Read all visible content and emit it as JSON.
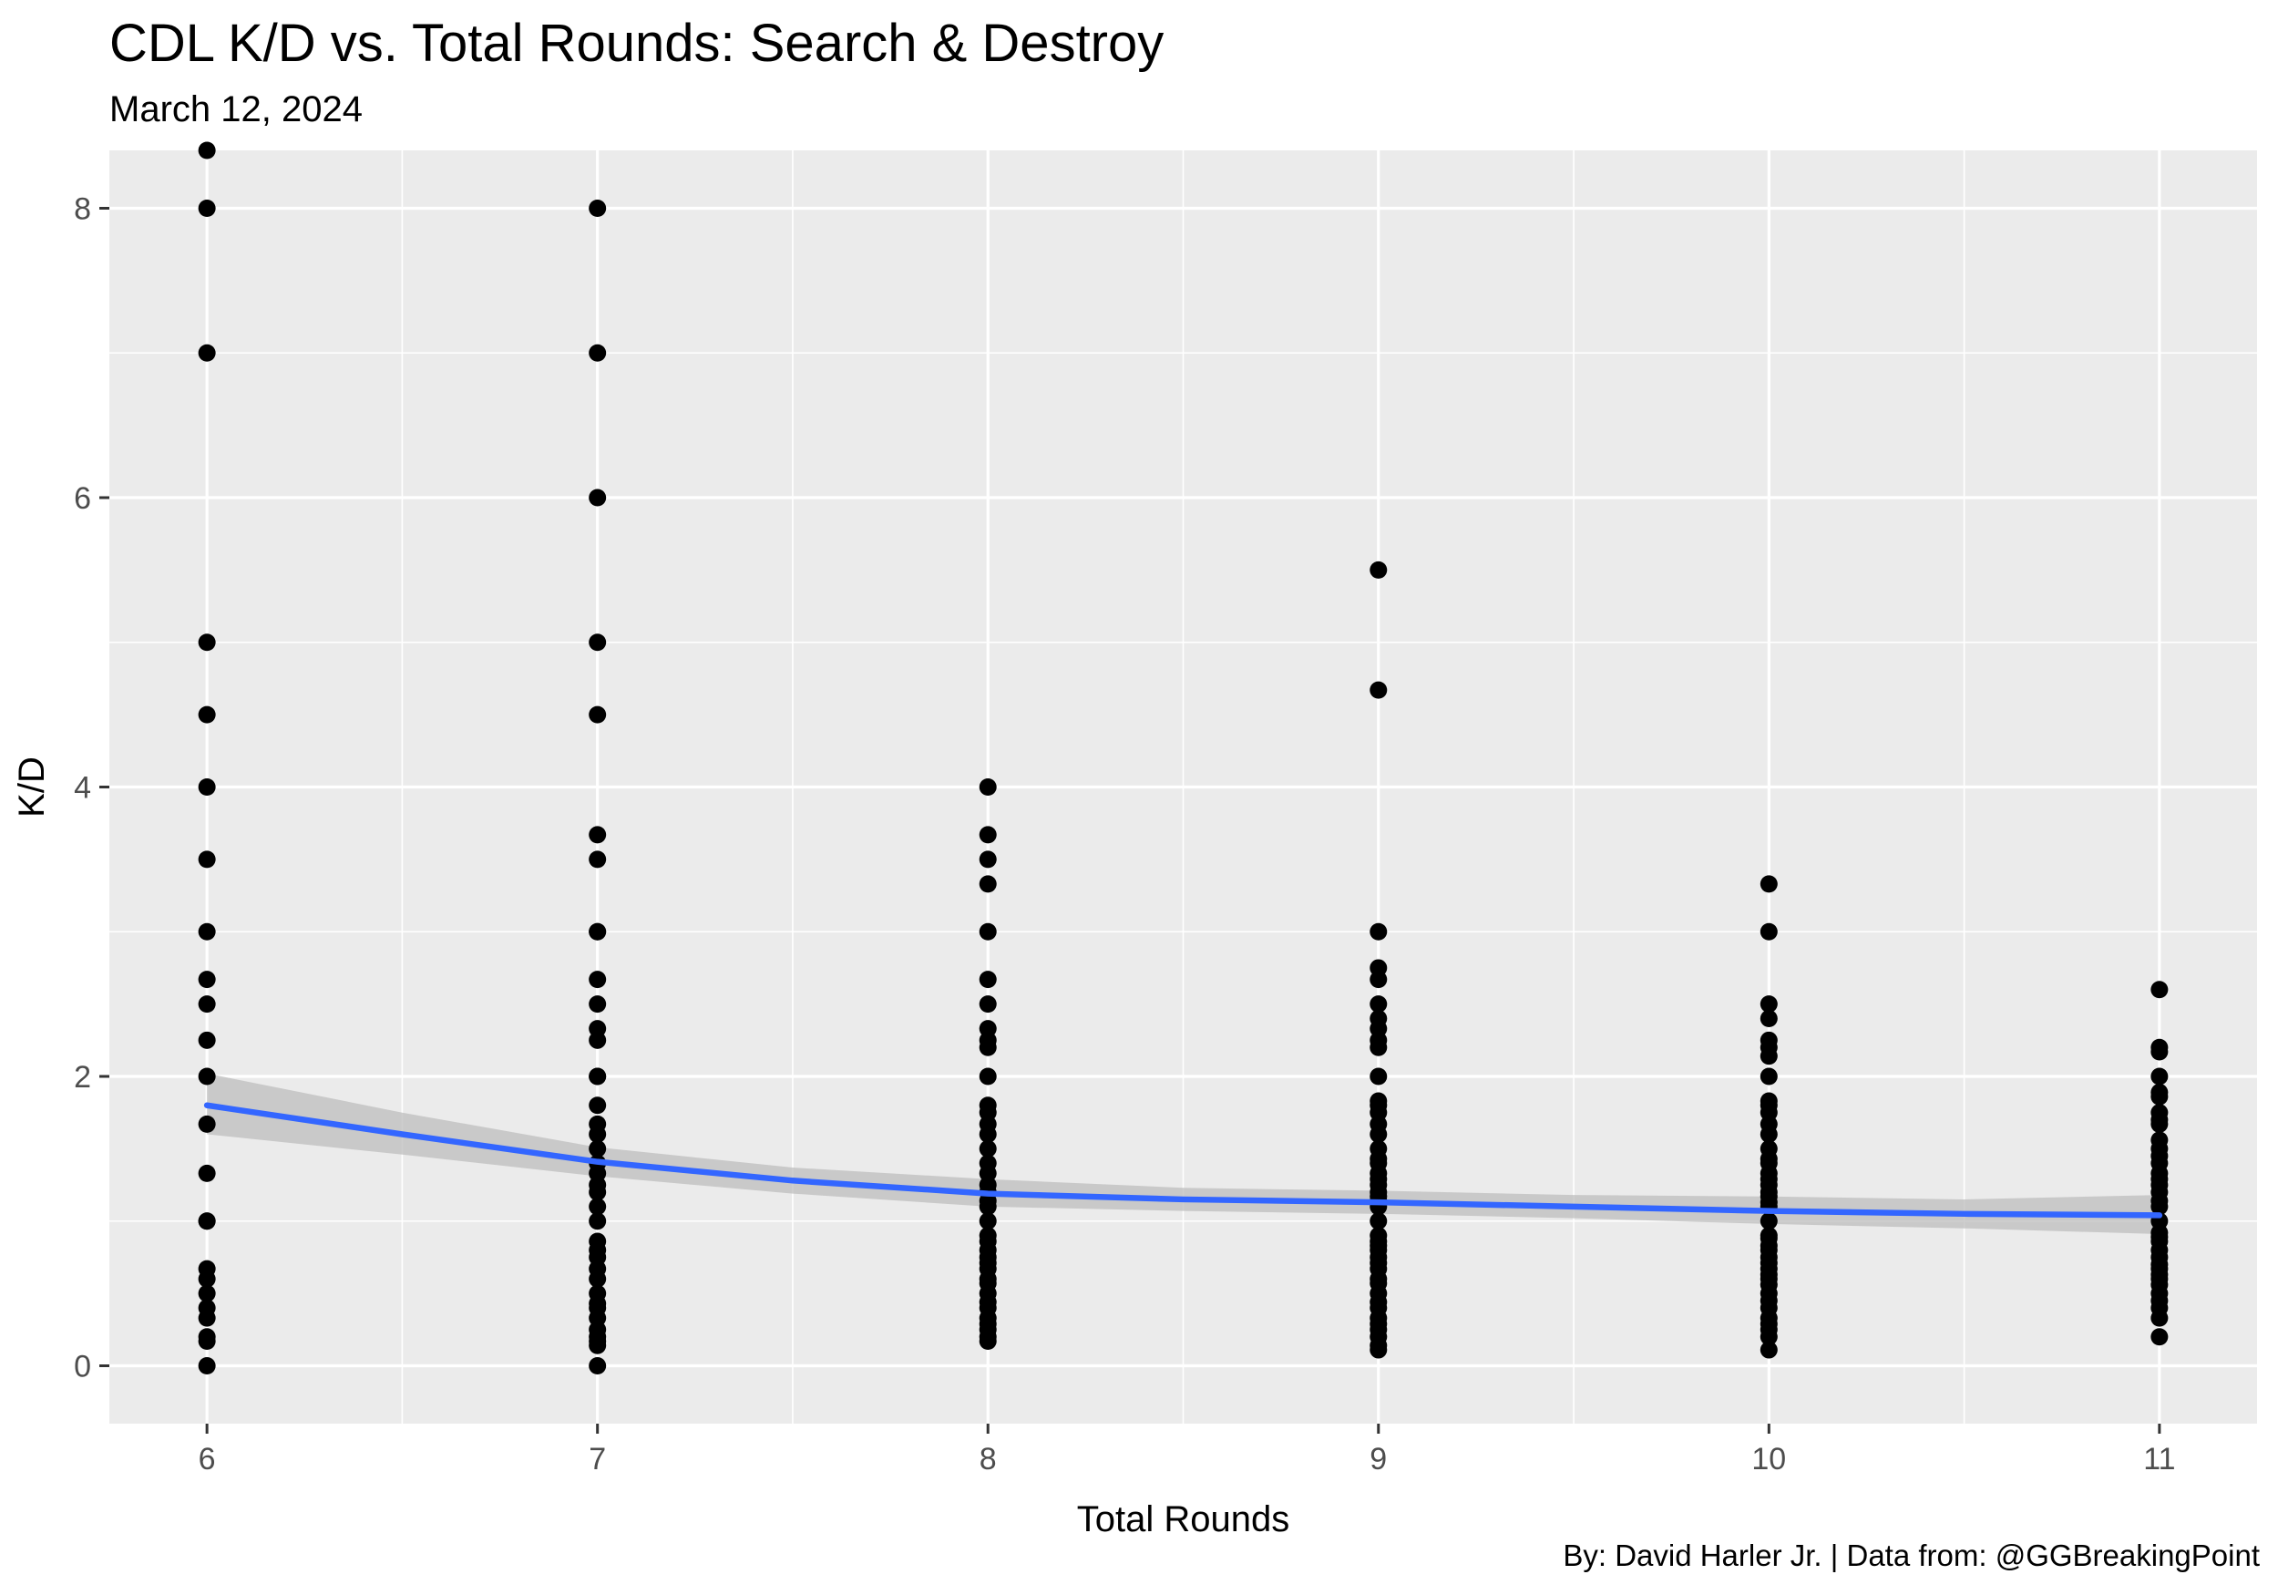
{
  "chart_data": {
    "type": "scatter",
    "title": "CDL K/D vs. Total Rounds: Search & Destroy",
    "subtitle": "March 12, 2024",
    "caption": "By: David Harler Jr. | Data from: @GGBreakingPoint",
    "xlabel": "Total Rounds",
    "ylabel": "K/D",
    "xlim": [
      5.75,
      11.25
    ],
    "ylim": [
      -0.4,
      8.4
    ],
    "x_ticks": [
      6,
      7,
      8,
      9,
      10,
      11
    ],
    "y_ticks": [
      0,
      2,
      4,
      6,
      8
    ],
    "grid": true,
    "background": "#EBEBEB",
    "grid_color": "#FFFFFF",
    "point_color": "#000000",
    "smooth_color": "#3366FF",
    "band_color": "#BEBEBE",
    "points": [
      {
        "x": 6,
        "y": [
          8.4,
          8,
          7,
          5,
          4.5,
          4,
          3.5,
          3,
          2.67,
          2.5,
          2.25,
          2,
          1.67,
          1.33,
          1,
          1,
          0.67,
          0.6,
          0.5,
          0.4,
          0.33,
          0.2,
          0.17,
          0
        ]
      },
      {
        "x": 7,
        "y": [
          8,
          7,
          6,
          5,
          4.5,
          3.67,
          3.5,
          3,
          3,
          2.67,
          2.5,
          2.33,
          2.25,
          2,
          2,
          1.8,
          1.67,
          1.6,
          1.5,
          1.4,
          1.33,
          1.25,
          1.2,
          1.1,
          1,
          0.86,
          0.8,
          0.75,
          0.67,
          0.6,
          0.5,
          0.43,
          0.4,
          0.33,
          0.25,
          0.2,
          0.17,
          0.14,
          0
        ]
      },
      {
        "x": 8,
        "y": [
          4,
          3.67,
          3.5,
          3.33,
          3,
          2.67,
          2.5,
          2.33,
          2.25,
          2.2,
          2,
          1.8,
          1.75,
          1.67,
          1.6,
          1.5,
          1.4,
          1.33,
          1.25,
          1.2,
          1.14,
          1.1,
          1,
          0.9,
          0.86,
          0.8,
          0.75,
          0.71,
          0.67,
          0.6,
          0.57,
          0.5,
          0.44,
          0.4,
          0.33,
          0.29,
          0.25,
          0.2,
          0.17
        ]
      },
      {
        "x": 9,
        "y": [
          5.5,
          4.67,
          3,
          2.75,
          2.67,
          2.5,
          2.4,
          2.33,
          2.25,
          2.2,
          2,
          1.83,
          1.8,
          1.75,
          1.67,
          1.6,
          1.5,
          1.43,
          1.4,
          1.33,
          1.29,
          1.25,
          1.2,
          1.17,
          1.14,
          1.1,
          1,
          0.9,
          0.86,
          0.83,
          0.8,
          0.75,
          0.71,
          0.67,
          0.6,
          0.57,
          0.5,
          0.44,
          0.4,
          0.33,
          0.29,
          0.25,
          0.2,
          0.14,
          0.11
        ]
      },
      {
        "x": 10,
        "y": [
          3.33,
          3,
          2.5,
          2.4,
          2.25,
          2.2,
          2.14,
          2,
          1.83,
          1.8,
          1.75,
          1.67,
          1.6,
          1.5,
          1.43,
          1.4,
          1.33,
          1.29,
          1.25,
          1.2,
          1.17,
          1.13,
          1.1,
          1,
          0.9,
          0.88,
          0.83,
          0.8,
          0.75,
          0.71,
          0.67,
          0.63,
          0.6,
          0.56,
          0.5,
          0.45,
          0.4,
          0.33,
          0.29,
          0.25,
          0.2,
          0.11
        ]
      },
      {
        "x": 11,
        "y": [
          2.6,
          2.2,
          2.17,
          2,
          1.89,
          1.86,
          1.75,
          1.7,
          1.67,
          1.56,
          1.5,
          1.45,
          1.4,
          1.33,
          1.29,
          1.25,
          1.2,
          1.14,
          1.1,
          1,
          0.92,
          0.89,
          0.86,
          0.8,
          0.75,
          0.7,
          0.67,
          0.63,
          0.6,
          0.56,
          0.5,
          0.45,
          0.4,
          0.33,
          0.2
        ]
      }
    ],
    "smooth": {
      "x": [
        6,
        6.5,
        7,
        7.5,
        8,
        8.5,
        9,
        9.5,
        10,
        10.5,
        11
      ],
      "y": [
        1.8,
        1.6,
        1.41,
        1.28,
        1.19,
        1.15,
        1.13,
        1.1,
        1.07,
        1.05,
        1.04
      ],
      "lower": [
        1.6,
        1.46,
        1.31,
        1.19,
        1.1,
        1.07,
        1.05,
        1.02,
        0.98,
        0.95,
        0.91
      ],
      "upper": [
        2.02,
        1.75,
        1.51,
        1.37,
        1.29,
        1.23,
        1.21,
        1.18,
        1.17,
        1.15,
        1.18
      ]
    }
  }
}
